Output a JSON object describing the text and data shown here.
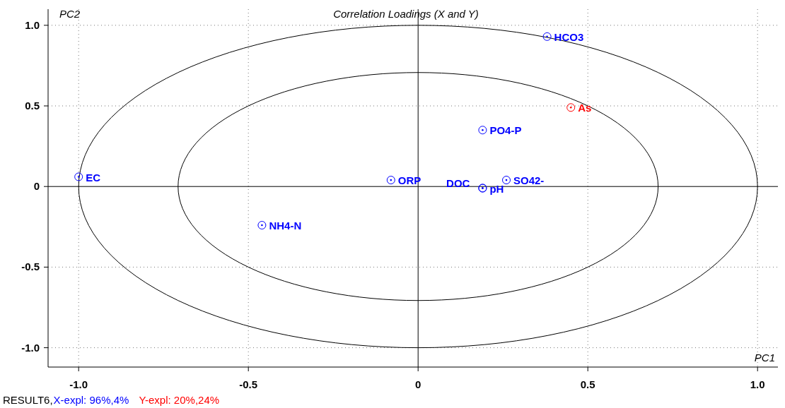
{
  "chart_data": {
    "type": "scatter",
    "title": "Correlation Loadings (X and Y)",
    "xlabel": "PC1",
    "ylabel": "PC2",
    "xlim": [
      -1.09,
      1.06
    ],
    "ylim": [
      -1.12,
      1.1
    ],
    "xticks": [
      {
        "value": -1,
        "label": "-1.0"
      },
      -0.5,
      0,
      0.5,
      {
        "value": 1,
        "label": "1.0"
      }
    ],
    "yticks": [
      {
        "value": -1,
        "label": "-1.0"
      },
      -0.5,
      0,
      0.5,
      {
        "value": 1,
        "label": "1.0"
      }
    ],
    "grid": true,
    "marker": "circle",
    "series": [
      {
        "name": "EC",
        "color": "#0000ff",
        "x": [
          -1.0
        ],
        "values": [
          0.06
        ]
      },
      {
        "name": "ORP",
        "color": "#0000ff",
        "x": [
          -0.08
        ],
        "values": [
          0.04
        ]
      },
      {
        "name": "DOC",
        "color": "#0000ff",
        "x": [
          0.19
        ],
        "values": [
          -0.01
        ]
      },
      {
        "name": "pH",
        "color": "#0000ff",
        "x": [
          0.19
        ],
        "values": [
          -0.01
        ]
      },
      {
        "name": "SO42-",
        "color": "#0000ff",
        "x": [
          0.26
        ],
        "values": [
          0.04
        ]
      },
      {
        "name": "PO4-P",
        "color": "#0000ff",
        "x": [
          0.19
        ],
        "values": [
          0.35
        ]
      },
      {
        "name": "HCO3",
        "color": "#0000ff",
        "x": [
          0.38
        ],
        "values": [
          0.93
        ]
      },
      {
        "name": "NH4-N",
        "color": "#0000ff",
        "x": [
          -0.46
        ],
        "values": [
          -0.24
        ]
      },
      {
        "name": "As",
        "color": "#ff0000",
        "x": [
          0.45
        ],
        "values": [
          0.49
        ]
      }
    ],
    "annotations": [
      "RESULT6,",
      "X-expl: 96%,4%",
      "Y-expl: 20%,24%"
    ]
  }
}
